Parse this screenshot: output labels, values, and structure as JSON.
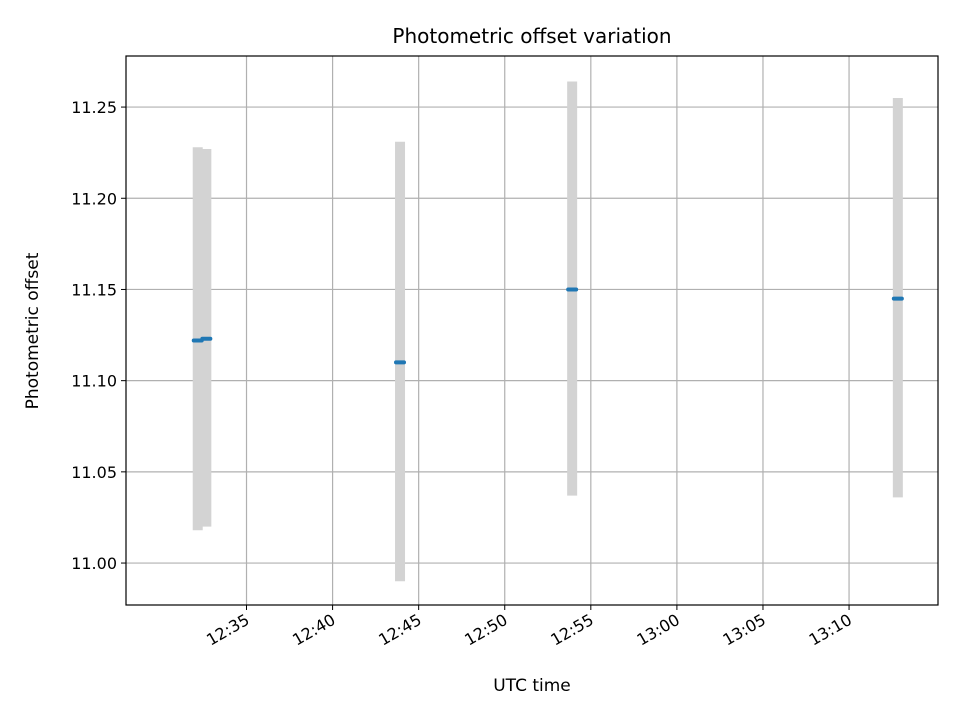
{
  "chart_data": {
    "type": "scatter",
    "title": "Photometric offset variation",
    "xlabel": "UTC time",
    "ylabel": "Photometric offset",
    "x_is_time": true,
    "xlim": [
      "12:28:00",
      "13:15:10"
    ],
    "ylim": [
      10.977,
      11.278
    ],
    "grid": true,
    "x_ticks": [
      "12:35",
      "12:40",
      "12:45",
      "12:50",
      "12:55",
      "13:00",
      "13:05",
      "13:10"
    ],
    "y_ticks": [
      "11.00",
      "11.05",
      "11.10",
      "11.15",
      "11.20",
      "11.25"
    ],
    "marker_color": "#1f77b4",
    "errorbar_color": "#d3d3d3",
    "points": [
      {
        "time": "12:32:10",
        "value": 11.122,
        "lower": 11.018,
        "upper": 11.228
      },
      {
        "time": "12:32:40",
        "value": 11.123,
        "lower": 11.02,
        "upper": 11.227
      },
      {
        "time": "12:43:55",
        "value": 11.11,
        "lower": 10.99,
        "upper": 11.231
      },
      {
        "time": "12:53:55",
        "value": 11.15,
        "lower": 11.037,
        "upper": 11.264
      },
      {
        "time": "13:12:50",
        "value": 11.145,
        "lower": 11.036,
        "upper": 11.255
      }
    ]
  }
}
